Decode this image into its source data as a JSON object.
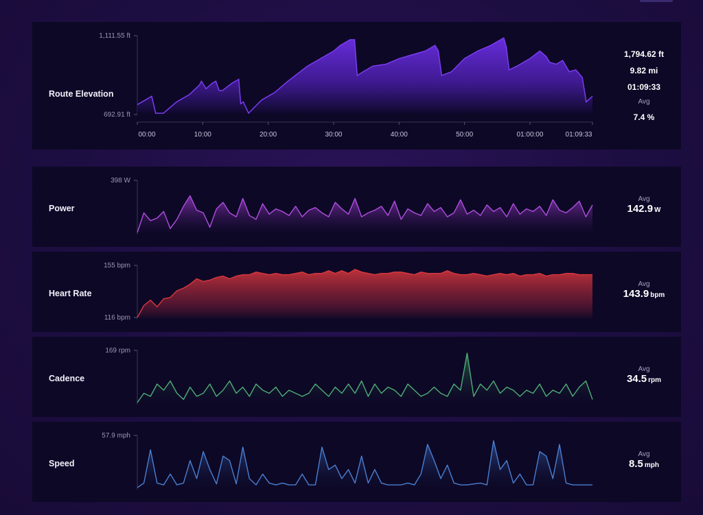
{
  "elevation": {
    "label": "Route Elevation",
    "stats": {
      "gain": "1,794.62 ft",
      "distance": "9.82 mi",
      "duration": "01:09:33",
      "avg_label": "Avg",
      "avg_grade": "7.4 %"
    },
    "color": "#7a3cf0",
    "chart_data": {
      "type": "area",
      "title": "Route Elevation",
      "y_unit": "ft",
      "y_tick_labels": [
        "1,111.55 ft",
        "692.91 ft"
      ],
      "ylim": [
        692.91,
        1111.55
      ],
      "x_tick_labels": [
        "00:00",
        "10:00",
        "20:00",
        "30:00",
        "40:00",
        "50:00",
        "01:00:00",
        "01:09:33"
      ],
      "x_minutes": [
        0,
        2.2,
        2.8,
        4,
        6,
        8,
        9.5,
        9.8,
        10.5,
        11.5,
        12,
        12.5,
        13,
        14.5,
        15.5,
        15.8,
        16.2,
        17,
        19,
        21,
        23,
        26,
        28.5,
        30,
        31,
        32.5,
        33.2,
        33.6,
        34.5,
        36,
        38,
        40,
        42,
        44,
        45.5,
        46,
        46.5,
        48,
        50,
        52,
        54,
        56,
        56.4,
        56.8,
        58,
        60,
        61.5,
        62.5,
        63,
        64,
        65,
        66,
        67,
        68,
        68.6,
        69.55
      ],
      "y_ft": [
        745,
        790,
        700,
        700,
        760,
        800,
        850,
        870,
        830,
        860,
        870,
        820,
        820,
        860,
        880,
        750,
        760,
        700,
        770,
        810,
        870,
        950,
        1000,
        1030,
        1060,
        1090,
        1090,
        900,
        920,
        950,
        960,
        990,
        1010,
        1030,
        1060,
        1030,
        900,
        920,
        990,
        1030,
        1060,
        1100,
        1050,
        930,
        950,
        990,
        1030,
        1000,
        970,
        960,
        980,
        920,
        930,
        890,
        760,
        790
      ]
    }
  },
  "power": {
    "label": "Power",
    "avg_label": "Avg",
    "avg_value": "142.9",
    "avg_unit": "W",
    "y_tick": "398 W",
    "color": "#b04ee0",
    "chart_data": {
      "type": "line",
      "y_unit": "W",
      "ylim": [
        0,
        398
      ],
      "duration_min": 69.55,
      "values": [
        0,
        150,
        90,
        110,
        160,
        30,
        100,
        200,
        280,
        170,
        150,
        40,
        180,
        230,
        150,
        120,
        260,
        130,
        100,
        220,
        140,
        180,
        160,
        130,
        200,
        120,
        170,
        190,
        150,
        120,
        230,
        180,
        140,
        260,
        120,
        150,
        170,
        200,
        130,
        240,
        100,
        180,
        150,
        130,
        220,
        160,
        190,
        120,
        150,
        250,
        140,
        170,
        130,
        210,
        160,
        190,
        120,
        220,
        140,
        180,
        160,
        200,
        130,
        250,
        170,
        150,
        190,
        240,
        120,
        210
      ]
    }
  },
  "heart_rate": {
    "label": "Heart Rate",
    "avg_label": "Avg",
    "avg_value": "143.9",
    "avg_unit": "bpm",
    "y_ticks": [
      "155 bpm",
      "116 bpm"
    ],
    "color": "#d8383f",
    "chart_data": {
      "type": "line",
      "y_unit": "bpm",
      "ylim": [
        116,
        155
      ],
      "duration_min": 69.55,
      "values": [
        116,
        125,
        129,
        124,
        130,
        131,
        136,
        138,
        141,
        145,
        143,
        144,
        146,
        147,
        145,
        147,
        148,
        148,
        150,
        149,
        148,
        149,
        148,
        148,
        149,
        150,
        148,
        149,
        149,
        151,
        149,
        151,
        149,
        152,
        150,
        149,
        148,
        149,
        149,
        150,
        150,
        149,
        148,
        150,
        149,
        149,
        149,
        151,
        149,
        148,
        148,
        149,
        148,
        147,
        148,
        149,
        148,
        149,
        147,
        148,
        148,
        149,
        147,
        148,
        148,
        149,
        149,
        148,
        148,
        148
      ]
    }
  },
  "cadence": {
    "label": "Cadence",
    "avg_label": "Avg",
    "avg_value": "34.5",
    "avg_unit": "rpm",
    "y_tick": "169 rpm",
    "color": "#4fae78",
    "chart_data": {
      "type": "line",
      "y_unit": "rpm",
      "ylim": [
        0,
        169
      ],
      "duration_min": 69.55,
      "values": [
        0,
        30,
        20,
        60,
        40,
        70,
        30,
        10,
        50,
        20,
        30,
        60,
        20,
        40,
        70,
        30,
        50,
        20,
        60,
        40,
        30,
        50,
        20,
        40,
        30,
        20,
        30,
        60,
        40,
        20,
        50,
        30,
        60,
        30,
        70,
        20,
        60,
        30,
        50,
        40,
        20,
        60,
        40,
        20,
        30,
        50,
        30,
        20,
        60,
        40,
        160,
        20,
        60,
        40,
        70,
        30,
        50,
        40,
        20,
        40,
        30,
        60,
        20,
        40,
        30,
        60,
        20,
        50,
        70,
        10
      ]
    }
  },
  "speed": {
    "label": "Speed",
    "avg_label": "Avg",
    "avg_value": "8.5",
    "avg_unit": "mph",
    "y_tick": "57.9 mph",
    "color": "#4a7fd0",
    "chart_data": {
      "type": "line",
      "y_unit": "mph",
      "ylim": [
        0,
        57.9
      ],
      "duration_min": 69.55,
      "values": [
        0,
        5,
        42,
        5,
        3,
        15,
        3,
        5,
        30,
        10,
        40,
        20,
        4,
        35,
        30,
        4,
        45,
        10,
        3,
        15,
        5,
        3,
        5,
        3,
        3,
        15,
        3,
        3,
        45,
        20,
        25,
        10,
        20,
        5,
        35,
        5,
        20,
        5,
        3,
        3,
        3,
        5,
        3,
        15,
        48,
        30,
        10,
        25,
        5,
        3,
        3,
        4,
        5,
        3,
        52,
        20,
        30,
        5,
        15,
        3,
        3,
        40,
        35,
        10,
        48,
        5,
        3,
        3,
        3,
        3
      ]
    }
  }
}
